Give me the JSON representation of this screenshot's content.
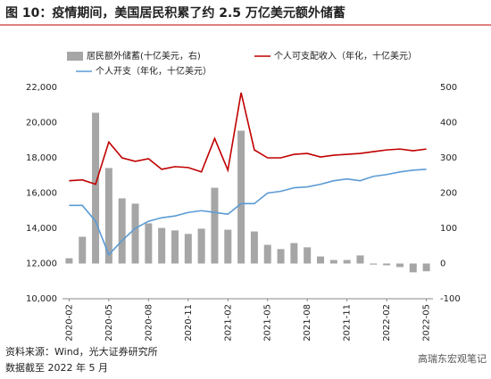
{
  "chart_data": {
    "type": "bar-line",
    "title": "图 10：疫情期间，美国居民积累了约 2.5 万亿美元额外储蓄",
    "source": "资料来源：Wind，光大证券研究所",
    "note": "数据截至 2022 年 5 月",
    "watermark": "高瑞东宏观笔记",
    "categories": [
      "2020-02",
      null,
      null,
      "2020-05",
      null,
      null,
      "2020-08",
      null,
      null,
      "2020-11",
      null,
      null,
      "2021-02",
      null,
      null,
      "2021-05",
      null,
      null,
      "2021-08",
      null,
      null,
      "2021-11",
      null,
      null,
      "2022-02",
      null,
      null,
      "2022-05"
    ],
    "series": [
      {
        "name": "居民额外储蓄(十亿美元，右)",
        "type": "bar",
        "axis": "y2",
        "color": "#a6a6a6",
        "values": [
          15,
          76,
          428,
          271,
          185,
          170,
          114,
          101,
          94,
          84,
          99,
          215,
          96,
          377,
          91,
          53,
          41,
          58,
          46,
          20,
          10,
          10,
          23,
          -3,
          -5,
          -10,
          -25,
          -22
        ]
      },
      {
        "name": "个人可支配收入（年化，十亿美元）",
        "type": "line",
        "color": "#c00000",
        "values": [
          16700,
          16750,
          16500,
          18900,
          18000,
          17800,
          17950,
          17350,
          17500,
          17450,
          17200,
          19100,
          17300,
          21700,
          18450,
          18000,
          18000,
          18200,
          18250,
          18050,
          18150,
          18200,
          18250,
          18350,
          18450,
          18500,
          18400,
          18500
        ]
      },
      {
        "name": "个人开支（年化，十亿美元）",
        "type": "line",
        "color": "#5b9bd5",
        "values": [
          15300,
          15300,
          14400,
          12500,
          13300,
          14000,
          14400,
          14600,
          14700,
          14900,
          15000,
          14900,
          14800,
          15400,
          15400,
          16000,
          16100,
          16300,
          16350,
          16500,
          16700,
          16800,
          16700,
          16950,
          17050,
          17200,
          17300,
          17350
        ]
      }
    ],
    "ylim": [
      10000,
      22000
    ],
    "yticks": [
      {
        "value": 10000,
        "label": "10,000"
      },
      {
        "value": 12000,
        "label": "12,000"
      },
      {
        "value": 14000,
        "label": "14,000"
      },
      {
        "value": 16000,
        "label": "16,000"
      },
      {
        "value": 18000,
        "label": "18,000"
      },
      {
        "value": 20000,
        "label": "20,000"
      },
      {
        "value": 22000,
        "label": "22,000"
      }
    ],
    "y2lim": [
      -100,
      500
    ],
    "y2ticks": [
      -100,
      0,
      100,
      200,
      300,
      400,
      500
    ]
  }
}
